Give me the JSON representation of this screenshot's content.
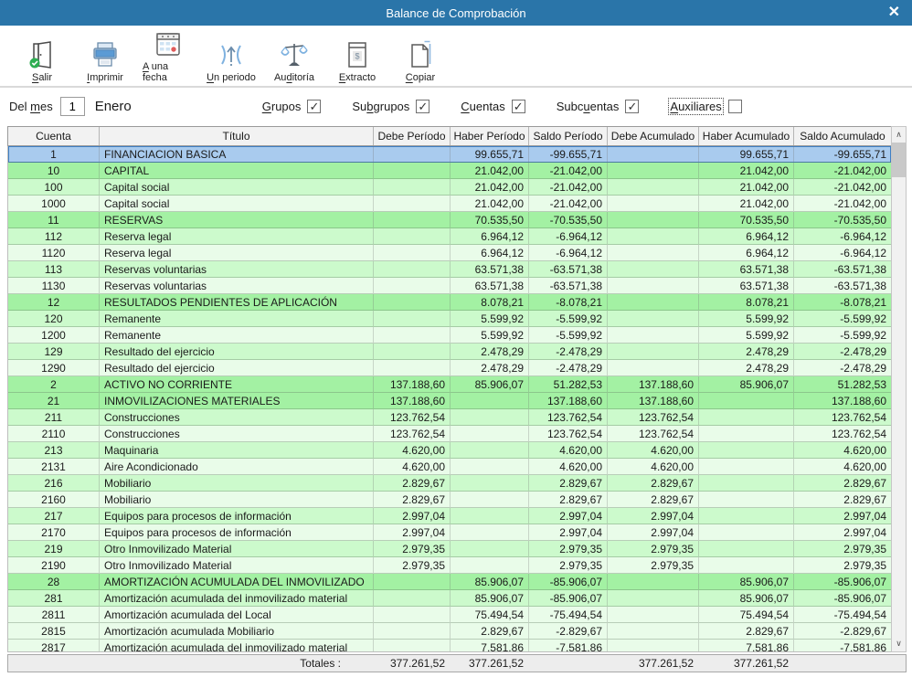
{
  "window": {
    "title": "Balance de Comprobación",
    "close_icon": "✕"
  },
  "colors": {
    "titlebar": "#2A75A9",
    "selected_blue": "#A9CBEE",
    "group_green": "#A3F1A3",
    "cuenta_green": "#CCFACC",
    "subcuenta_green": "#E9FCE9"
  },
  "toolbar": {
    "items": [
      {
        "id": "salir",
        "label": "Salir",
        "accel": 0,
        "icon": "exit-door"
      },
      {
        "id": "imprimir",
        "label": "Imprimir",
        "accel": 0,
        "icon": "printer"
      },
      {
        "id": "a-una-fecha",
        "label": "A una fecha",
        "accel": 0,
        "icon": "calendar"
      },
      {
        "id": "un-periodo",
        "label": "Un periodo",
        "accel": 0,
        "icon": "period-arrows"
      },
      {
        "id": "auditoria",
        "label": "Auditoría",
        "accel": 2,
        "icon": "scales"
      },
      {
        "id": "extracto",
        "label": "Extracto",
        "accel": 0,
        "icon": "document-dollar"
      },
      {
        "id": "copiar",
        "label": "Copiar",
        "accel": 0,
        "icon": "copy-pages"
      }
    ]
  },
  "filters": {
    "month_label": "Del mes",
    "month_label_accel": 4,
    "month_value": "1",
    "month_name": "Enero",
    "checkboxes": [
      {
        "id": "grupos",
        "label": "Grupos",
        "accel": 0,
        "checked": true,
        "focused": false
      },
      {
        "id": "subgrupos",
        "label": "Subgrupos",
        "accel": 2,
        "checked": true,
        "focused": false
      },
      {
        "id": "cuentas",
        "label": "Cuentas",
        "accel": 0,
        "checked": true,
        "focused": false
      },
      {
        "id": "subcuentas",
        "label": "Subcuentas",
        "accel": 4,
        "checked": true,
        "focused": false
      },
      {
        "id": "auxiliares",
        "label": "Auxiliares",
        "accel": 0,
        "checked": false,
        "focused": true
      }
    ],
    "check_glyph": "✓"
  },
  "scrollbar": {
    "up_glyph": "∧",
    "down_glyph": "∨"
  },
  "table": {
    "columns": [
      {
        "key": "cuenta",
        "label": "Cuenta",
        "align": "center"
      },
      {
        "key": "titulo",
        "label": "Título",
        "align": "left"
      },
      {
        "key": "debe_periodo",
        "label": "Debe Período",
        "align": "right"
      },
      {
        "key": "haber_periodo",
        "label": "Haber Período",
        "align": "right"
      },
      {
        "key": "saldo_periodo",
        "label": "Saldo Período",
        "align": "right"
      },
      {
        "key": "debe_acumulado",
        "label": "Debe Acumulado",
        "align": "right"
      },
      {
        "key": "haber_acumulado",
        "label": "Haber Acumulado",
        "align": "right"
      },
      {
        "key": "saldo_acumulado",
        "label": "Saldo Acumulado",
        "align": "right"
      }
    ],
    "rows": [
      {
        "cuenta": "1",
        "titulo": "FINANCIACION BASICA",
        "debe_periodo": "",
        "haber_periodo": "99.655,71",
        "saldo_periodo": "-99.655,71",
        "debe_acumulado": "",
        "haber_acumulado": "99.655,71",
        "saldo_acumulado": "-99.655,71",
        "level": 1,
        "selected": true
      },
      {
        "cuenta": "10",
        "titulo": "CAPITAL",
        "debe_periodo": "",
        "haber_periodo": "21.042,00",
        "saldo_periodo": "-21.042,00",
        "debe_acumulado": "",
        "haber_acumulado": "21.042,00",
        "saldo_acumulado": "-21.042,00",
        "level": 2,
        "selected": false
      },
      {
        "cuenta": "100",
        "titulo": "Capital social",
        "debe_periodo": "",
        "haber_periodo": "21.042,00",
        "saldo_periodo": "-21.042,00",
        "debe_acumulado": "",
        "haber_acumulado": "21.042,00",
        "saldo_acumulado": "-21.042,00",
        "level": 3,
        "selected": false
      },
      {
        "cuenta": "1000",
        "titulo": "Capital social",
        "debe_periodo": "",
        "haber_periodo": "21.042,00",
        "saldo_periodo": "-21.042,00",
        "debe_acumulado": "",
        "haber_acumulado": "21.042,00",
        "saldo_acumulado": "-21.042,00",
        "level": 4,
        "selected": false
      },
      {
        "cuenta": "11",
        "titulo": "RESERVAS",
        "debe_periodo": "",
        "haber_periodo": "70.535,50",
        "saldo_periodo": "-70.535,50",
        "debe_acumulado": "",
        "haber_acumulado": "70.535,50",
        "saldo_acumulado": "-70.535,50",
        "level": 2,
        "selected": false
      },
      {
        "cuenta": "112",
        "titulo": "Reserva legal",
        "debe_periodo": "",
        "haber_periodo": "6.964,12",
        "saldo_periodo": "-6.964,12",
        "debe_acumulado": "",
        "haber_acumulado": "6.964,12",
        "saldo_acumulado": "-6.964,12",
        "level": 3,
        "selected": false
      },
      {
        "cuenta": "1120",
        "titulo": "Reserva legal",
        "debe_periodo": "",
        "haber_periodo": "6.964,12",
        "saldo_periodo": "-6.964,12",
        "debe_acumulado": "",
        "haber_acumulado": "6.964,12",
        "saldo_acumulado": "-6.964,12",
        "level": 4,
        "selected": false
      },
      {
        "cuenta": "113",
        "titulo": "Reservas voluntarias",
        "debe_periodo": "",
        "haber_periodo": "63.571,38",
        "saldo_periodo": "-63.571,38",
        "debe_acumulado": "",
        "haber_acumulado": "63.571,38",
        "saldo_acumulado": "-63.571,38",
        "level": 3,
        "selected": false
      },
      {
        "cuenta": "1130",
        "titulo": "Reservas voluntarias",
        "debe_periodo": "",
        "haber_periodo": "63.571,38",
        "saldo_periodo": "-63.571,38",
        "debe_acumulado": "",
        "haber_acumulado": "63.571,38",
        "saldo_acumulado": "-63.571,38",
        "level": 4,
        "selected": false
      },
      {
        "cuenta": "12",
        "titulo": "RESULTADOS PENDIENTES DE APLICACIÓN",
        "debe_periodo": "",
        "haber_periodo": "8.078,21",
        "saldo_periodo": "-8.078,21",
        "debe_acumulado": "",
        "haber_acumulado": "8.078,21",
        "saldo_acumulado": "-8.078,21",
        "level": 2,
        "selected": false
      },
      {
        "cuenta": "120",
        "titulo": "Remanente",
        "debe_periodo": "",
        "haber_periodo": "5.599,92",
        "saldo_periodo": "-5.599,92",
        "debe_acumulado": "",
        "haber_acumulado": "5.599,92",
        "saldo_acumulado": "-5.599,92",
        "level": 3,
        "selected": false
      },
      {
        "cuenta": "1200",
        "titulo": "Remanente",
        "debe_periodo": "",
        "haber_periodo": "5.599,92",
        "saldo_periodo": "-5.599,92",
        "debe_acumulado": "",
        "haber_acumulado": "5.599,92",
        "saldo_acumulado": "-5.599,92",
        "level": 4,
        "selected": false
      },
      {
        "cuenta": "129",
        "titulo": "Resultado del ejercicio",
        "debe_periodo": "",
        "haber_periodo": "2.478,29",
        "saldo_periodo": "-2.478,29",
        "debe_acumulado": "",
        "haber_acumulado": "2.478,29",
        "saldo_acumulado": "-2.478,29",
        "level": 3,
        "selected": false
      },
      {
        "cuenta": "1290",
        "titulo": "Resultado del ejercicio",
        "debe_periodo": "",
        "haber_periodo": "2.478,29",
        "saldo_periodo": "-2.478,29",
        "debe_acumulado": "",
        "haber_acumulado": "2.478,29",
        "saldo_acumulado": "-2.478,29",
        "level": 4,
        "selected": false
      },
      {
        "cuenta": "2",
        "titulo": "ACTIVO NO CORRIENTE",
        "debe_periodo": "137.188,60",
        "haber_periodo": "85.906,07",
        "saldo_periodo": "51.282,53",
        "debe_acumulado": "137.188,60",
        "haber_acumulado": "85.906,07",
        "saldo_acumulado": "51.282,53",
        "level": 1,
        "selected": false
      },
      {
        "cuenta": "21",
        "titulo": "INMOVILIZACIONES MATERIALES",
        "debe_periodo": "137.188,60",
        "haber_periodo": "",
        "saldo_periodo": "137.188,60",
        "debe_acumulado": "137.188,60",
        "haber_acumulado": "",
        "saldo_acumulado": "137.188,60",
        "level": 2,
        "selected": false
      },
      {
        "cuenta": "211",
        "titulo": "Construcciones",
        "debe_periodo": "123.762,54",
        "haber_periodo": "",
        "saldo_periodo": "123.762,54",
        "debe_acumulado": "123.762,54",
        "haber_acumulado": "",
        "saldo_acumulado": "123.762,54",
        "level": 3,
        "selected": false
      },
      {
        "cuenta": "2110",
        "titulo": "Construcciones",
        "debe_periodo": "123.762,54",
        "haber_periodo": "",
        "saldo_periodo": "123.762,54",
        "debe_acumulado": "123.762,54",
        "haber_acumulado": "",
        "saldo_acumulado": "123.762,54",
        "level": 4,
        "selected": false
      },
      {
        "cuenta": "213",
        "titulo": "Maquinaria",
        "debe_periodo": "4.620,00",
        "haber_periodo": "",
        "saldo_periodo": "4.620,00",
        "debe_acumulado": "4.620,00",
        "haber_acumulado": "",
        "saldo_acumulado": "4.620,00",
        "level": 3,
        "selected": false
      },
      {
        "cuenta": "2131",
        "titulo": "Aire Acondicionado",
        "debe_periodo": "4.620,00",
        "haber_periodo": "",
        "saldo_periodo": "4.620,00",
        "debe_acumulado": "4.620,00",
        "haber_acumulado": "",
        "saldo_acumulado": "4.620,00",
        "level": 4,
        "selected": false
      },
      {
        "cuenta": "216",
        "titulo": "Mobiliario",
        "debe_periodo": "2.829,67",
        "haber_periodo": "",
        "saldo_periodo": "2.829,67",
        "debe_acumulado": "2.829,67",
        "haber_acumulado": "",
        "saldo_acumulado": "2.829,67",
        "level": 3,
        "selected": false
      },
      {
        "cuenta": "2160",
        "titulo": "Mobiliario",
        "debe_periodo": "2.829,67",
        "haber_periodo": "",
        "saldo_periodo": "2.829,67",
        "debe_acumulado": "2.829,67",
        "haber_acumulado": "",
        "saldo_acumulado": "2.829,67",
        "level": 4,
        "selected": false
      },
      {
        "cuenta": "217",
        "titulo": "Equipos para procesos de información",
        "debe_periodo": "2.997,04",
        "haber_periodo": "",
        "saldo_periodo": "2.997,04",
        "debe_acumulado": "2.997,04",
        "haber_acumulado": "",
        "saldo_acumulado": "2.997,04",
        "level": 3,
        "selected": false
      },
      {
        "cuenta": "2170",
        "titulo": "Equipos para procesos de información",
        "debe_periodo": "2.997,04",
        "haber_periodo": "",
        "saldo_periodo": "2.997,04",
        "debe_acumulado": "2.997,04",
        "haber_acumulado": "",
        "saldo_acumulado": "2.997,04",
        "level": 4,
        "selected": false
      },
      {
        "cuenta": "219",
        "titulo": "Otro Inmovilizado Material",
        "debe_periodo": "2.979,35",
        "haber_periodo": "",
        "saldo_periodo": "2.979,35",
        "debe_acumulado": "2.979,35",
        "haber_acumulado": "",
        "saldo_acumulado": "2.979,35",
        "level": 3,
        "selected": false
      },
      {
        "cuenta": "2190",
        "titulo": "Otro Inmovilizado Material",
        "debe_periodo": "2.979,35",
        "haber_periodo": "",
        "saldo_periodo": "2.979,35",
        "debe_acumulado": "2.979,35",
        "haber_acumulado": "",
        "saldo_acumulado": "2.979,35",
        "level": 4,
        "selected": false
      },
      {
        "cuenta": "28",
        "titulo": "AMORTIZACIÓN ACUMULADA DEL INMOVILIZADO",
        "debe_periodo": "",
        "haber_periodo": "85.906,07",
        "saldo_periodo": "-85.906,07",
        "debe_acumulado": "",
        "haber_acumulado": "85.906,07",
        "saldo_acumulado": "-85.906,07",
        "level": 2,
        "selected": false
      },
      {
        "cuenta": "281",
        "titulo": "Amortización acumulada del inmovilizado material",
        "debe_periodo": "",
        "haber_periodo": "85.906,07",
        "saldo_periodo": "-85.906,07",
        "debe_acumulado": "",
        "haber_acumulado": "85.906,07",
        "saldo_acumulado": "-85.906,07",
        "level": 3,
        "selected": false
      },
      {
        "cuenta": "2811",
        "titulo": "Amortización acumulada del Local",
        "debe_periodo": "",
        "haber_periodo": "75.494,54",
        "saldo_periodo": "-75.494,54",
        "debe_acumulado": "",
        "haber_acumulado": "75.494,54",
        "saldo_acumulado": "-75.494,54",
        "level": 4,
        "selected": false
      },
      {
        "cuenta": "2815",
        "titulo": "Amortización acumulada Mobiliario",
        "debe_periodo": "",
        "haber_periodo": "2.829,67",
        "saldo_periodo": "-2.829,67",
        "debe_acumulado": "",
        "haber_acumulado": "2.829,67",
        "saldo_acumulado": "-2.829,67",
        "level": 4,
        "selected": false
      },
      {
        "cuenta": "2817",
        "titulo": "Amortización acumulada del inmovilizado material",
        "debe_periodo": "",
        "haber_periodo": "7.581,86",
        "saldo_periodo": "-7.581,86",
        "debe_acumulado": "",
        "haber_acumulado": "7.581,86",
        "saldo_acumulado": "-7.581,86",
        "level": 4,
        "selected": false
      }
    ],
    "totals": {
      "label": "Totales :",
      "debe_periodo": "377.261,52",
      "haber_periodo": "377.261,52",
      "saldo_periodo": "",
      "debe_acumulado": "377.261,52",
      "haber_acumulado": "377.261,52",
      "saldo_acumulado": ""
    }
  }
}
